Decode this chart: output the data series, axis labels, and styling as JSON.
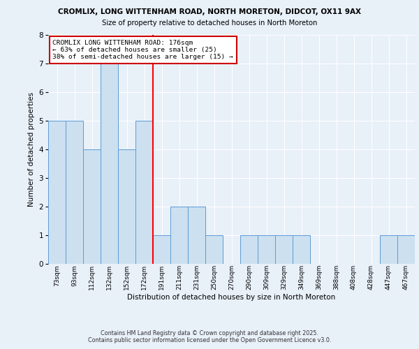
{
  "title_line1": "CROMLIX, LONG WITTENHAM ROAD, NORTH MORETON, DIDCOT, OX11 9AX",
  "title_line2": "Size of property relative to detached houses in North Moreton",
  "xlabel": "Distribution of detached houses by size in North Moreton",
  "ylabel": "Number of detached properties",
  "categories": [
    "73sqm",
    "93sqm",
    "112sqm",
    "132sqm",
    "152sqm",
    "172sqm",
    "191sqm",
    "211sqm",
    "231sqm",
    "250sqm",
    "270sqm",
    "290sqm",
    "309sqm",
    "329sqm",
    "349sqm",
    "369sqm",
    "388sqm",
    "408sqm",
    "428sqm",
    "447sqm",
    "467sqm"
  ],
  "values": [
    5,
    5,
    4,
    7,
    4,
    5,
    1,
    2,
    2,
    1,
    0,
    1,
    1,
    1,
    1,
    0,
    0,
    0,
    0,
    1,
    1
  ],
  "bar_color": "#cce0f0",
  "bar_edge_color": "#5b9bd5",
  "red_line_x": 5.5,
  "ylim": [
    0,
    8
  ],
  "yticks": [
    0,
    1,
    2,
    3,
    4,
    5,
    6,
    7,
    8
  ],
  "annotation_text": "CROMLIX LONG WITTENHAM ROAD: 176sqm\n← 63% of detached houses are smaller (25)\n38% of semi-detached houses are larger (15) →",
  "annotation_box_color": "#ffffff",
  "annotation_box_edge": "#cc0000",
  "footer_text": "Contains HM Land Registry data © Crown copyright and database right 2025.\nContains public sector information licensed under the Open Government Licence v3.0.",
  "background_color": "#e8f0f8",
  "plot_bg_color": "#e8f0f8",
  "grid_color": "#ffffff"
}
